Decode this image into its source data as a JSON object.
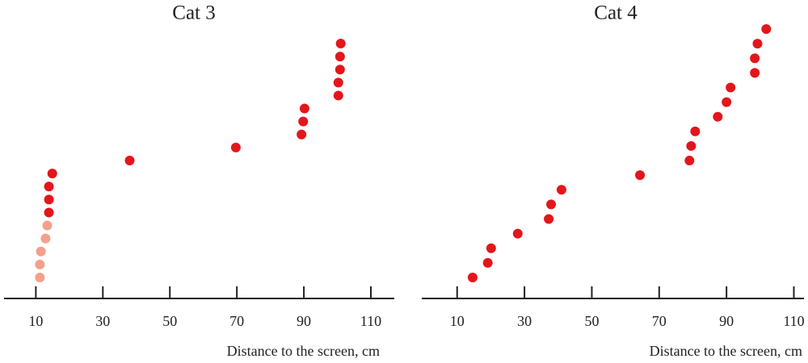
{
  "chart_data": [
    {
      "type": "strip",
      "title": "Cat 3",
      "x_label": "Distance to the screen, cm",
      "values": [
        11.2,
        11.2,
        11.5,
        12.9,
        13.4,
        13.9,
        13.9,
        13.9,
        14.9,
        38.0,
        69.7,
        89.3,
        89.8,
        90.2,
        100.3,
        100.3,
        100.8,
        100.8,
        101.0
      ],
      "colors": [
        "#f4a08a",
        "#f4a08a",
        "#f4a08a",
        "#f4a08a",
        "#f4a08a",
        "#e3161c",
        "#e3161c",
        "#e3161c",
        "#e3161c",
        "#e3161c",
        "#e3161c",
        "#e3161c",
        "#e3161c",
        "#e3161c",
        "#e3161c",
        "#e3161c",
        "#e3161c",
        "#e3161c",
        "#e3161c"
      ],
      "xlim": [
        0.5,
        117
      ],
      "xticks": [
        10,
        30,
        50,
        70,
        90,
        110
      ]
    },
    {
      "type": "strip",
      "title": "Cat 4",
      "x_label": "Distance to the screen, cm",
      "values": [
        14.6,
        19.1,
        20.1,
        28.0,
        37.2,
        37.9,
        41.0,
        64.3,
        79.0,
        79.5,
        80.7,
        87.4,
        90.0,
        91.2,
        98.4,
        98.4,
        99.2,
        101.8
      ],
      "colors": [
        "#e3161c",
        "#e3161c",
        "#e3161c",
        "#e3161c",
        "#e3161c",
        "#e3161c",
        "#e3161c",
        "#e3161c",
        "#e3161c",
        "#e3161c",
        "#e3161c",
        "#e3161c",
        "#e3161c",
        "#e3161c",
        "#e3161c",
        "#e3161c",
        "#e3161c",
        "#e3161c"
      ],
      "xlim": [
        -0.5,
        113
      ],
      "xticks": [
        10,
        30,
        50,
        70,
        90,
        110
      ]
    }
  ]
}
